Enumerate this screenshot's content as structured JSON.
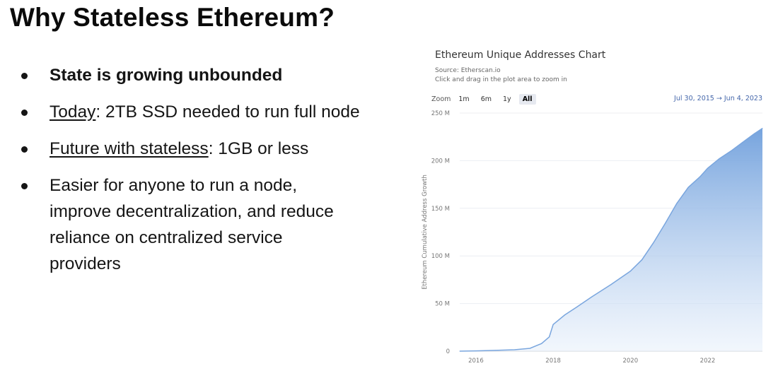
{
  "slide": {
    "title": "Why Stateless Ethereum?",
    "bullets": [
      {
        "text": "State is growing unbounded"
      },
      {
        "underlined": "Today",
        "rest": ": 2TB SSD needed to run full node"
      },
      {
        "underlined": "Future with stateless",
        "rest": ": 1GB or less"
      },
      {
        "line1": "Easier for anyone to run a node,",
        "line2": "improve decentralization, and reduce",
        "line3": "reliance on centralized service",
        "line4": "providers"
      }
    ]
  },
  "chart": {
    "title": "Ethereum Unique Addresses Chart",
    "source": "Source: Etherscan.io",
    "hint": "Click and drag in the plot area to zoom in",
    "zoom_label": "Zoom",
    "zoom_buttons": [
      "1m",
      "6m",
      "1y",
      "All"
    ],
    "active_zoom": "All",
    "range_from": "Jul 30, 2015",
    "range_arrow": "→",
    "range_to": "Jun 4, 2023",
    "accent_color": "#7aa6de"
  },
  "chart_data": {
    "type": "area",
    "title": "Ethereum Unique Addresses Chart",
    "ylabel": "Ethereum Cumulative Address Growth",
    "xlabel": "",
    "y_ticks": [
      "0",
      "50 M",
      "100 M",
      "150 M",
      "200 M",
      "250 M"
    ],
    "x_ticks": [
      "2016",
      "2018",
      "2020",
      "2022"
    ],
    "ylim": [
      0,
      250
    ],
    "xlim": [
      2015.58,
      2023.42
    ],
    "x": [
      2015.58,
      2016.0,
      2016.5,
      2017.0,
      2017.4,
      2017.7,
      2017.9,
      2018.0,
      2018.3,
      2018.6,
      2019.0,
      2019.5,
      2020.0,
      2020.3,
      2020.6,
      2020.9,
      2021.2,
      2021.5,
      2021.8,
      2022.0,
      2022.3,
      2022.6,
      2022.9,
      2023.2,
      2023.42
    ],
    "y": [
      0,
      0.3,
      0.8,
      1.5,
      3,
      8,
      15,
      28,
      38,
      46,
      57,
      70,
      84,
      96,
      114,
      134,
      155,
      172,
      183,
      192,
      202,
      210,
      219,
      228,
      234
    ],
    "grid": true,
    "legend": "none"
  }
}
